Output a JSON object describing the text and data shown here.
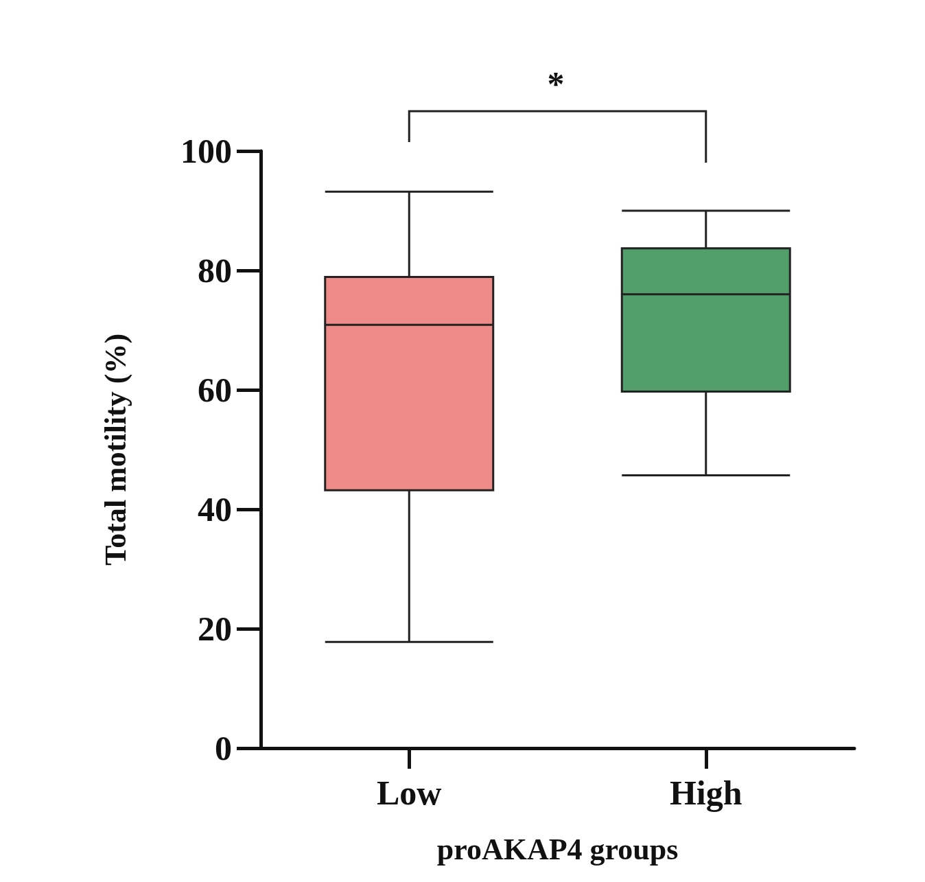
{
  "chart_data": {
    "type": "box",
    "xlabel": "proAKAP4 groups",
    "ylabel": "Total motility (%)",
    "categories": [
      "Low",
      "High"
    ],
    "boxes": [
      {
        "low": 17.8,
        "q1": 43.2,
        "median": 70.9,
        "q3": 78.9,
        "high": 93.2
      },
      {
        "low": 45.7,
        "q1": 59.7,
        "median": 76,
        "q3": 83.7,
        "high": 90
      }
    ],
    "colors": [
      "#ee8a87",
      "#519e6a"
    ],
    "ylim": [
      0,
      100
    ],
    "yticks": [
      0,
      20,
      40,
      60,
      80,
      100
    ],
    "annotations": [
      "*"
    ]
  }
}
